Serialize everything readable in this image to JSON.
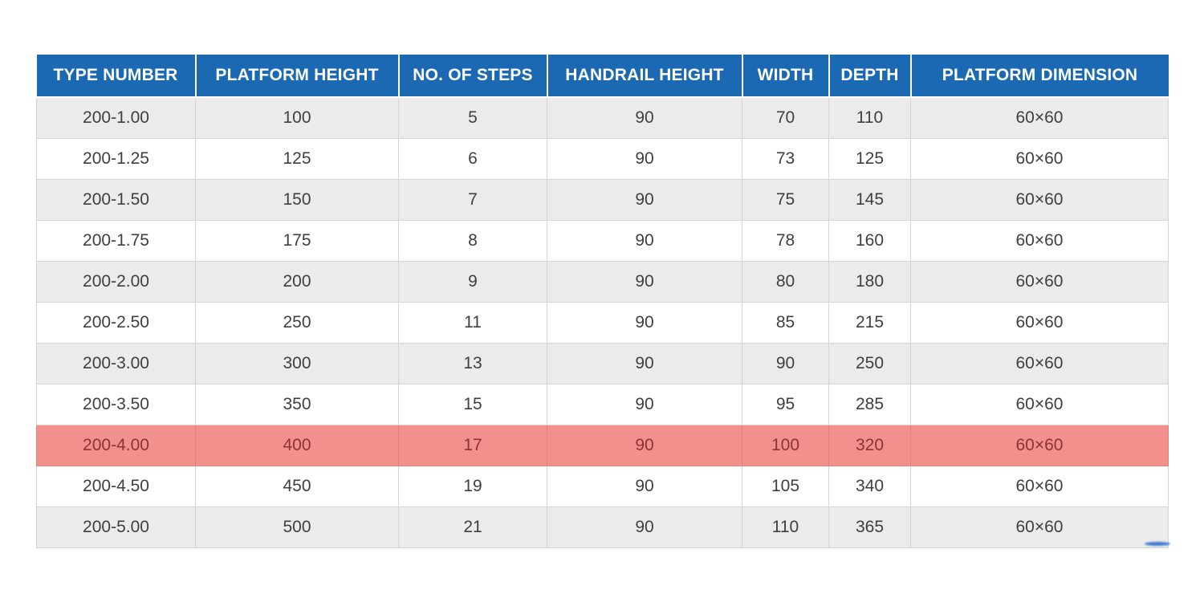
{
  "table": {
    "columns": [
      "TYPE NUMBER",
      "PLATFORM HEIGHT",
      "NO. OF STEPS",
      "HANDRAIL HEIGHT",
      "WIDTH",
      "DEPTH",
      "PLATFORM DIMENSION"
    ],
    "rows": [
      [
        "200-1.00",
        "100",
        "5",
        "90",
        "70",
        "110",
        "60×60"
      ],
      [
        "200-1.25",
        "125",
        "6",
        "90",
        "73",
        "125",
        "60×60"
      ],
      [
        "200-1.50",
        "150",
        "7",
        "90",
        "75",
        "145",
        "60×60"
      ],
      [
        "200-1.75",
        "175",
        "8",
        "90",
        "78",
        "160",
        "60×60"
      ],
      [
        "200-2.00",
        "200",
        "9",
        "90",
        "80",
        "180",
        "60×60"
      ],
      [
        "200-2.50",
        "250",
        "11",
        "90",
        "85",
        "215",
        "60×60"
      ],
      [
        "200-3.00",
        "300",
        "13",
        "90",
        "90",
        "250",
        "60×60"
      ],
      [
        "200-3.50",
        "350",
        "15",
        "90",
        "95",
        "285",
        "60×60"
      ],
      [
        "200-4.00",
        "400",
        "17",
        "90",
        "100",
        "320",
        "60×60"
      ],
      [
        "200-4.50",
        "450",
        "19",
        "90",
        "105",
        "340",
        "60×60"
      ],
      [
        "200-5.00",
        "500",
        "21",
        "90",
        "110",
        "365",
        "60×60"
      ]
    ],
    "highlighted_row_index": 8,
    "colors": {
      "header_bg": "#1b69b2",
      "header_text": "#ffffff",
      "row_bg": "#ffffff",
      "row_alt_bg": "#ebebeb",
      "highlight_bg": "#f2908e",
      "highlight_text": "#8d3237",
      "body_text": "#3f3f3f",
      "border": "#d4d4d4"
    }
  }
}
